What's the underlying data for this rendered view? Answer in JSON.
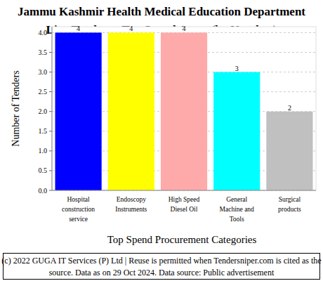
{
  "chart_data": {
    "type": "bar",
    "title": [
      "Jammu Kashmir Health Medical Education Department",
      "Live Tenders - Top Spend Areas (by Number)"
    ],
    "x_label": "Top Spend Procurement Categories",
    "y_label": "Number of Tenders",
    "categories": [
      "Hospital construction service",
      "Endoscopy Instruments",
      "High Speed Diesel Oil",
      "General Machine and Tools",
      "Surgical products"
    ],
    "values": [
      4,
      4,
      4,
      3,
      2
    ],
    "colors": [
      "#0000ff",
      "#ffff00",
      "#ffaaaa",
      "#00ffff",
      "#c0c0c0"
    ],
    "ylim": [
      0,
      4.15
    ],
    "yticks": [
      {
        "value": 0,
        "label": "0.0"
      },
      0.5,
      {
        "value": 1,
        "label": "1.0"
      },
      1.5,
      {
        "value": 2,
        "label": "2.0"
      },
      2.5,
      {
        "value": 3,
        "label": "3.0"
      },
      3.5,
      {
        "value": 4,
        "label": "4.0"
      }
    ],
    "grid": true,
    "data_labels": true,
    "annotations": [
      "(c) 2022 GUGA IT Services (P) Ltd | Reuse is permitted when Tendersniper.com is cited as the",
      "source. Data as on 29 Oct 2024. Data source: Public advertisement"
    ]
  }
}
